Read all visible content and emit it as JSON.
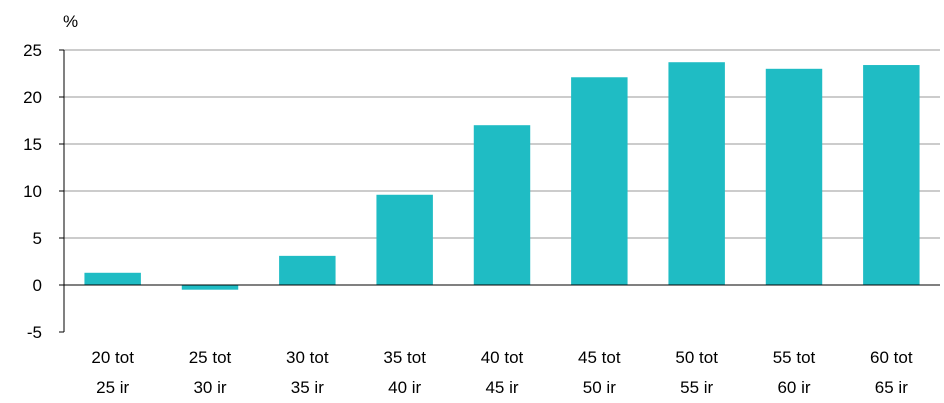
{
  "chart_data": {
    "type": "bar",
    "unit_label": "%",
    "categories": [
      [
        "20 tot",
        "25 ir"
      ],
      [
        "25 tot",
        "30 ir"
      ],
      [
        "30 tot",
        "35 ir"
      ],
      [
        "35 tot",
        "40 ir"
      ],
      [
        "40 tot",
        "45 ir"
      ],
      [
        "45 tot",
        "50 ir"
      ],
      [
        "50 tot",
        "55 ir"
      ],
      [
        "55 tot",
        "60 ir"
      ],
      [
        "60 tot",
        "65 ir"
      ]
    ],
    "values": [
      1.3,
      -0.5,
      3.1,
      9.6,
      17.0,
      22.1,
      23.7,
      23.0,
      23.4
    ],
    "ylim": [
      -5,
      25
    ],
    "yticks": [
      25,
      20,
      15,
      10,
      5,
      0,
      -5
    ],
    "grid": true,
    "colors": {
      "bar": "#1FBCC4",
      "grid": "#9a9a9a",
      "axis": "#000000"
    }
  }
}
